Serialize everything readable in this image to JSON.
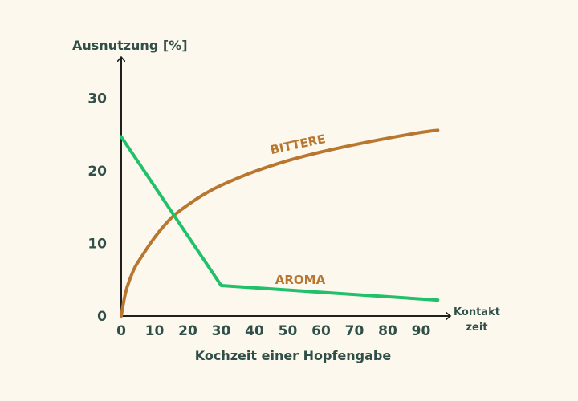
{
  "chart_data": {
    "type": "line",
    "title": "",
    "ylabel": "Ausnutzung [%]",
    "xlabel": "Kochzeit einer Hopfengabe",
    "x_axis_end_label": [
      "Kontakt",
      "zeit"
    ],
    "xlim": [
      0,
      95
    ],
    "ylim": [
      0,
      35
    ],
    "x_ticks": [
      0,
      10,
      20,
      30,
      40,
      50,
      60,
      70,
      80,
      90
    ],
    "y_ticks": [
      0,
      10,
      20,
      30
    ],
    "grid": false,
    "series": [
      {
        "name": "BITTERE",
        "color": "#b8762f",
        "x": [
          0,
          1,
          2,
          4,
          6,
          10,
          15,
          20,
          25,
          30,
          40,
          50,
          60,
          70,
          80,
          90,
          95
        ],
        "y": [
          0,
          2.6,
          4.3,
          6.6,
          8.1,
          10.8,
          13.5,
          15.3,
          16.8,
          18.0,
          19.9,
          21.4,
          22.6,
          23.6,
          24.5,
          25.3,
          25.6
        ]
      },
      {
        "name": "AROMA",
        "color": "#22c06b",
        "x": [
          0,
          30,
          95
        ],
        "y": [
          24.7,
          4.2,
          2.2
        ]
      }
    ],
    "annotations": [
      {
        "text": "BITTERE",
        "series": 0
      },
      {
        "text": "AROMA",
        "series": 1
      }
    ],
    "colors": {
      "axis": "#1f1f1f",
      "text": "#2f4f48",
      "background": "#fcf8ee"
    }
  }
}
